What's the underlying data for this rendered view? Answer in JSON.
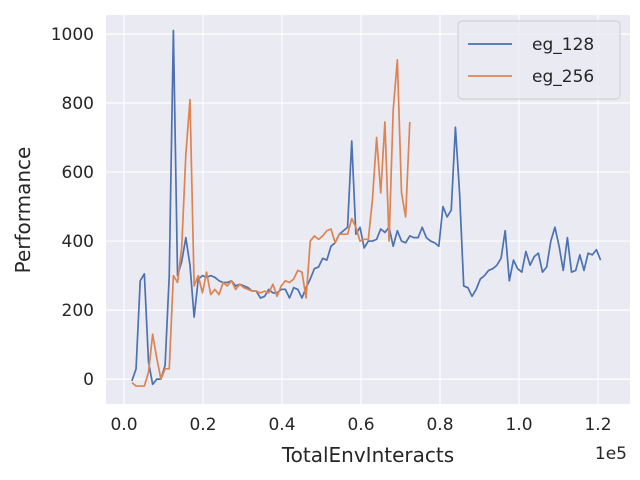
{
  "chart_data": {
    "type": "line",
    "xlabel": "TotalEnvInteracts",
    "ylabel": "Performance",
    "x_offset_label": "1e5",
    "xlim": [
      -4560,
      128100
    ],
    "ylim": [
      -72,
      1055
    ],
    "xticks": [
      {
        "value": 0,
        "label": "0.0"
      },
      {
        "value": 20000,
        "label": "0.2"
      },
      {
        "value": 40000,
        "label": "0.4"
      },
      {
        "value": 60000,
        "label": "0.6"
      },
      {
        "value": 80000,
        "label": "0.8"
      },
      {
        "value": 100000,
        "label": "1.0"
      },
      {
        "value": 120000,
        "label": "1.2"
      }
    ],
    "yticks": [
      0,
      200,
      400,
      600,
      800,
      1000
    ],
    "grid": true,
    "legend": "upper right",
    "series": [
      {
        "name": "eg_128",
        "color": "#4c72b0",
        "x": [
          2000,
          3050,
          4100,
          5150,
          6200,
          7250,
          8300,
          9350,
          10400,
          11450,
          12500,
          13550,
          14600,
          15650,
          16700,
          17750,
          18800,
          19850,
          20900,
          21950,
          23000,
          24050,
          25100,
          26150,
          27200,
          28250,
          29300,
          30350,
          31400,
          32450,
          33500,
          34550,
          35600,
          36650,
          37700,
          38750,
          39800,
          40850,
          41900,
          42950,
          44000,
          45050,
          46100,
          47150,
          48200,
          49250,
          50300,
          51350,
          52400,
          53450,
          54500,
          55550,
          56600,
          57650,
          58700,
          59750,
          60800,
          61850,
          62900,
          63950,
          65000,
          66050,
          67100,
          68150,
          69200,
          70250,
          71300,
          72350,
          73400,
          74450,
          75500,
          76550,
          77600,
          78650,
          79700,
          80750,
          81800,
          82850,
          83900,
          84950,
          86000,
          87050,
          88100,
          89150,
          90200,
          91250,
          92300,
          93350,
          94400,
          95450,
          96500,
          97550,
          98600,
          99650,
          100700,
          101750,
          102800,
          103850,
          104900,
          105950,
          107000,
          108050,
          109100,
          110150,
          111200,
          112250,
          113300,
          114350,
          115400,
          116450,
          117500,
          118550,
          119600,
          120650
        ],
        "values": [
          -5,
          30,
          285,
          305,
          50,
          -15,
          0,
          0,
          40,
          300,
          1010,
          300,
          340,
          410,
          330,
          180,
          290,
          300,
          295,
          300,
          295,
          285,
          280,
          280,
          285,
          270,
          275,
          270,
          265,
          255,
          255,
          235,
          240,
          260,
          250,
          250,
          260,
          260,
          235,
          265,
          260,
          235,
          265,
          290,
          320,
          325,
          350,
          345,
          385,
          395,
          420,
          430,
          440,
          690,
          420,
          440,
          380,
          400,
          400,
          405,
          435,
          425,
          440,
          385,
          430,
          400,
          395,
          415,
          410,
          410,
          440,
          410,
          400,
          395,
          385,
          500,
          470,
          490,
          730,
          540,
          270,
          265,
          240,
          260,
          290,
          300,
          315,
          320,
          330,
          350,
          430,
          285,
          345,
          320,
          310,
          370,
          330,
          355,
          365,
          310,
          325,
          400,
          440,
          385,
          315,
          410,
          310,
          315,
          360,
          315,
          365,
          360,
          375,
          345
        ]
      },
      {
        "name": "eg_256",
        "color": "#dd8452",
        "x": [
          2000,
          3050,
          4100,
          5150,
          6200,
          7250,
          8300,
          9350,
          10400,
          11450,
          12500,
          13550,
          14600,
          15650,
          16700,
          17750,
          18800,
          19850,
          20900,
          21950,
          23000,
          24050,
          25100,
          26150,
          27200,
          28250,
          29300,
          30350,
          31400,
          32450,
          33500,
          34550,
          35600,
          36650,
          37700,
          38750,
          39800,
          40850,
          41900,
          42950,
          44000,
          45050,
          46100,
          47150,
          48200,
          49250,
          50300,
          51350,
          52400,
          53450,
          54500,
          55550,
          56600,
          57650,
          58700,
          59750,
          60800,
          61850,
          62900,
          63950,
          65000,
          66050,
          67100,
          68150,
          69200,
          70250,
          71300,
          72350
        ],
        "values": [
          -10,
          -20,
          -20,
          -20,
          20,
          130,
          60,
          0,
          30,
          30,
          300,
          280,
          380,
          650,
          810,
          270,
          300,
          250,
          310,
          245,
          260,
          245,
          280,
          270,
          285,
          260,
          275,
          265,
          260,
          255,
          255,
          250,
          255,
          250,
          275,
          240,
          270,
          285,
          280,
          290,
          315,
          310,
          235,
          400,
          415,
          405,
          415,
          430,
          435,
          395,
          420,
          420,
          420,
          465,
          440,
          400,
          405,
          405,
          520,
          700,
          540,
          745,
          400,
          780,
          925,
          540,
          470,
          745
        ]
      }
    ]
  }
}
